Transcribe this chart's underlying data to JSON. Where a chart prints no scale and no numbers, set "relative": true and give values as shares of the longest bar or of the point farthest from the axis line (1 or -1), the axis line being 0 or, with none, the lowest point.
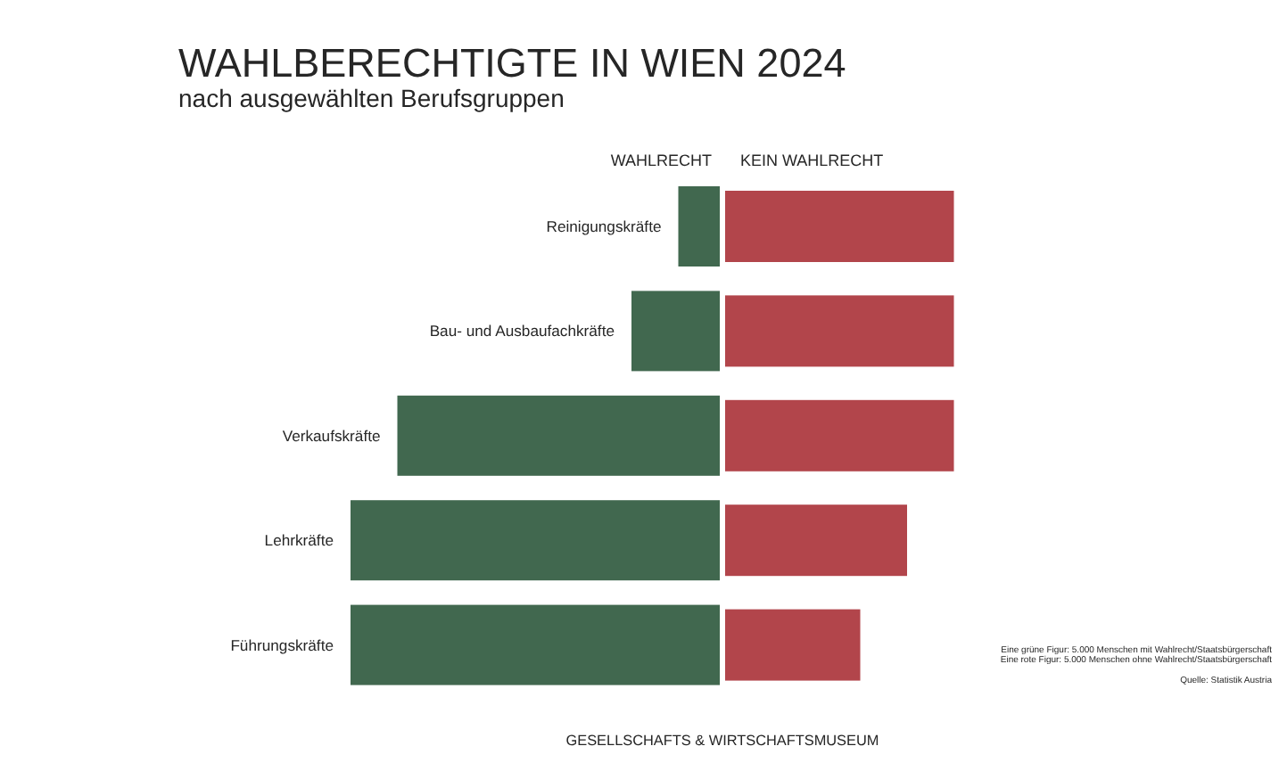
{
  "chart_data": {
    "type": "bar",
    "orientation": "horizontal",
    "relative": true,
    "title": "WAHLBERECHTIGTE IN WIEN 2024",
    "subtitle": "nach ausgewählten Berufsgruppen",
    "categories": [
      "Reinigungskräfte",
      "Bau- und Ausbaufachkräfte",
      "Verkaufskräfte",
      "Lehrkräfte",
      "Führungskräfte"
    ],
    "series": [
      {
        "name": "WAHLRECHT",
        "color": "#41684f",
        "values": [
          -0.125,
          -0.25,
          -0.875,
          -1,
          -1
        ]
      },
      {
        "name": "KEIN WAHLRECHT",
        "color": "#b2454b",
        "values": [
          0.625,
          0.625,
          0.625,
          0.5,
          0.375
        ]
      }
    ],
    "annotations": [
      "Eine grüne Figur: 5.000 Menschen mit Wahlrecht/Staatsbürgerschaft",
      "Eine rote Figur: 5.000 Menschen ohne Wahlrecht/Staatsbürgerschaft",
      "Quelle: Statistik Austria",
      "GESELLSCHAFTS & WIRTSCHAFTSMUSEUM"
    ]
  }
}
